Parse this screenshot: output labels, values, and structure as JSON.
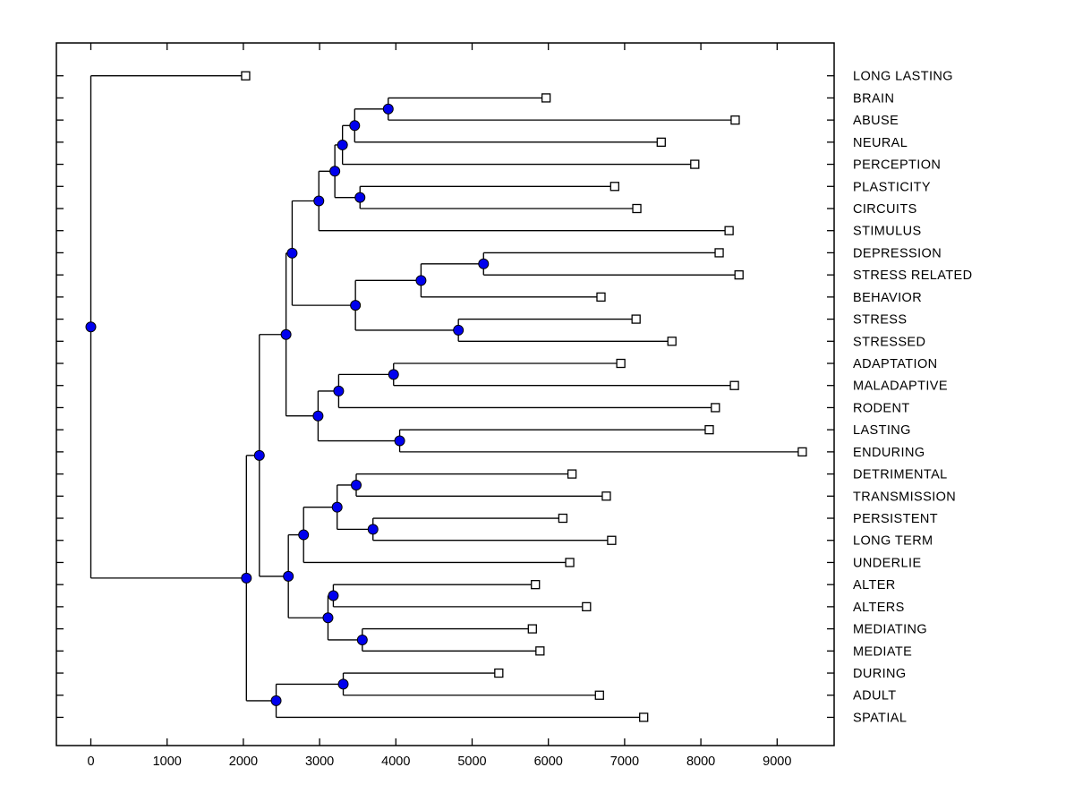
{
  "figure": {
    "background": "#ffffff",
    "plot_background": "#ffffff",
    "border_color": "#000000"
  },
  "chart_data": {
    "type": "dendrogram",
    "subtype": "phylogenetic-tree-horizontal",
    "title": "",
    "xlabel": "",
    "ylabel": "",
    "orientation": "root-left-leaves-right",
    "x_axis": {
      "ticks": [
        0,
        1000,
        2000,
        3000,
        4000,
        5000,
        6000,
        7000,
        8000,
        9000
      ],
      "range": [
        -452,
        9752
      ],
      "grid": false
    },
    "style": {
      "line_color": "#000000",
      "internal_node_fill": "#0000EE",
      "internal_node_edge": "#000000",
      "leaf_marker_fill": "#FFFFFF",
      "leaf_marker_edge": "#000000",
      "text_color": "#000000"
    },
    "leaf_labels": [
      "LONG LASTING",
      "BRAIN",
      "ABUSE",
      "NEURAL",
      "PERCEPTION",
      "PLASTICITY",
      "CIRCUITS",
      "STIMULUS",
      "DEPRESSION",
      "STRESS RELATED",
      "BEHAVIOR",
      "STRESS",
      "STRESSED",
      "ADAPTATION",
      "MALADAPTIVE",
      "RODENT",
      "LASTING",
      "ENDURING",
      "DETRIMENTAL",
      "TRANSMISSION",
      "PERSISTENT",
      "LONG TERM",
      "UNDERLIE",
      "ALTER",
      "ALTERS",
      "MEDIATING",
      "MEDIATE",
      "DURING",
      "ADULT",
      "SPATIAL"
    ],
    "tree": {
      "d": 0,
      "c": [
        {
          "n": "LONG LASTING",
          "d": 2030
        },
        {
          "d": 2040,
          "c": [
            {
              "d": 2210,
              "c": [
                {
                  "d": 2560,
                  "c": [
                    {
                      "d": 2640,
                      "c": [
                        {
                          "d": 2990,
                          "c": [
                            {
                              "d": 3200,
                              "c": [
                                {
                                  "d": 3300,
                                  "c": [
                                    {
                                      "d": 3460,
                                      "c": [
                                        {
                                          "d": 3900,
                                          "c": [
                                            {
                                              "n": "BRAIN",
                                              "d": 5970
                                            },
                                            {
                                              "n": "ABUSE",
                                              "d": 8450
                                            }
                                          ]
                                        },
                                        {
                                          "n": "NEURAL",
                                          "d": 7480
                                        }
                                      ]
                                    },
                                    {
                                      "n": "PERCEPTION",
                                      "d": 7920
                                    }
                                  ]
                                },
                                {
                                  "d": 3530,
                                  "c": [
                                    {
                                      "n": "PLASTICITY",
                                      "d": 6870
                                    },
                                    {
                                      "n": "CIRCUITS",
                                      "d": 7160
                                    }
                                  ]
                                }
                              ]
                            },
                            {
                              "n": "STIMULUS",
                              "d": 8370
                            }
                          ]
                        },
                        {
                          "d": 3470,
                          "c": [
                            {
                              "d": 4330,
                              "c": [
                                {
                                  "d": 5150,
                                  "c": [
                                    {
                                      "n": "DEPRESSION",
                                      "d": 8240
                                    },
                                    {
                                      "n": "STRESS RELATED",
                                      "d": 8500
                                    }
                                  ]
                                },
                                {
                                  "n": "BEHAVIOR",
                                  "d": 6690
                                }
                              ]
                            },
                            {
                              "d": 4820,
                              "c": [
                                {
                                  "n": "STRESS",
                                  "d": 7150
                                },
                                {
                                  "n": "STRESSED",
                                  "d": 7620
                                }
                              ]
                            }
                          ]
                        }
                      ]
                    },
                    {
                      "d": 2980,
                      "c": [
                        {
                          "d": 3250,
                          "c": [
                            {
                              "d": 3970,
                              "c": [
                                {
                                  "n": "ADAPTATION",
                                  "d": 6950
                                },
                                {
                                  "n": "MALADAPTIVE",
                                  "d": 8440
                                }
                              ]
                            },
                            {
                              "n": "RODENT",
                              "d": 8190
                            }
                          ]
                        },
                        {
                          "d": 4050,
                          "c": [
                            {
                              "n": "LASTING",
                              "d": 8110
                            },
                            {
                              "n": "ENDURING",
                              "d": 9330
                            }
                          ]
                        }
                      ]
                    }
                  ]
                },
                {
                  "d": 2590,
                  "c": [
                    {
                      "d": 2790,
                      "c": [
                        {
                          "d": 3230,
                          "c": [
                            {
                              "d": 3480,
                              "c": [
                                {
                                  "n": "DETRIMENTAL",
                                  "d": 6310
                                },
                                {
                                  "n": "TRANSMISSION",
                                  "d": 6760
                                }
                              ]
                            },
                            {
                              "d": 3700,
                              "c": [
                                {
                                  "n": "PERSISTENT",
                                  "d": 6190
                                },
                                {
                                  "n": "LONG TERM",
                                  "d": 6830
                                }
                              ]
                            }
                          ]
                        },
                        {
                          "n": "UNDERLIE",
                          "d": 6280
                        }
                      ]
                    },
                    {
                      "d": 3110,
                      "c": [
                        {
                          "d": 3180,
                          "c": [
                            {
                              "n": "ALTER",
                              "d": 5830
                            },
                            {
                              "n": "ALTERS",
                              "d": 6500
                            }
                          ]
                        },
                        {
                          "d": 3560,
                          "c": [
                            {
                              "n": "MEDIATING",
                              "d": 5790
                            },
                            {
                              "n": "MEDIATE",
                              "d": 5890
                            }
                          ]
                        }
                      ]
                    }
                  ]
                }
              ]
            },
            {
              "d": 2430,
              "c": [
                {
                  "d": 3310,
                  "c": [
                    {
                      "n": "DURING",
                      "d": 5350
                    },
                    {
                      "n": "ADULT",
                      "d": 6670
                    }
                  ]
                },
                {
                  "n": "SPATIAL",
                  "d": 7250
                }
              ]
            }
          ]
        }
      ]
    }
  }
}
